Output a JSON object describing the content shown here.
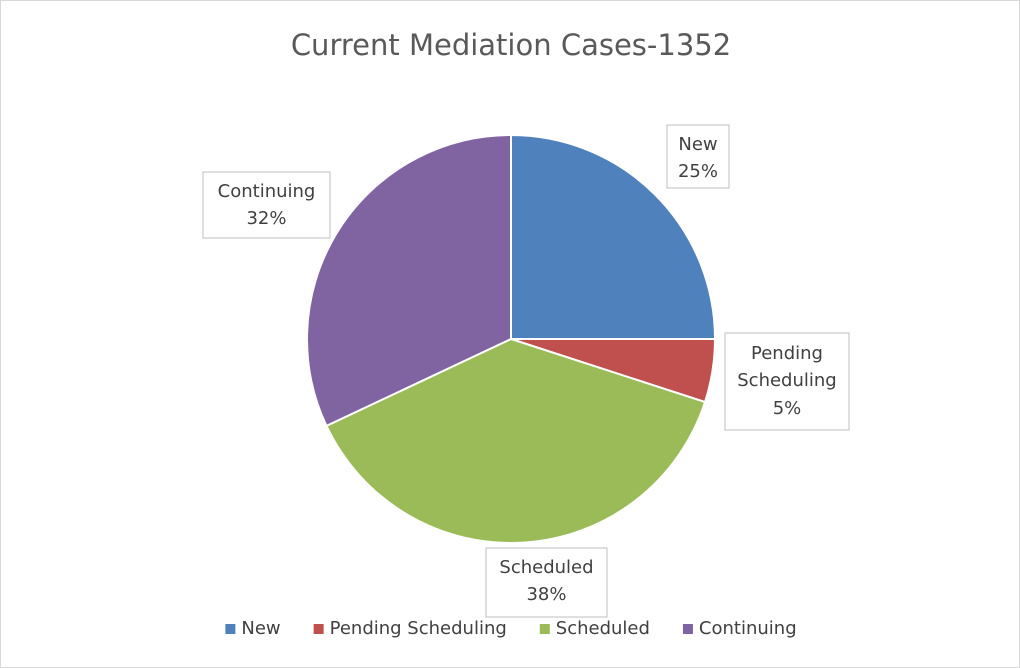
{
  "chart_data": {
    "type": "pie",
    "title": "Current Mediation Cases-1352",
    "categories": [
      "New",
      "Pending Scheduling",
      "Scheduled",
      "Continuing"
    ],
    "values": [
      25,
      5,
      38,
      32
    ],
    "value_labels": [
      "25%",
      "5%",
      "38%",
      "32%"
    ],
    "colors": [
      "#4f81bd",
      "#c0504d",
      "#9bbb59",
      "#8064a2"
    ],
    "legend": "bottom"
  }
}
